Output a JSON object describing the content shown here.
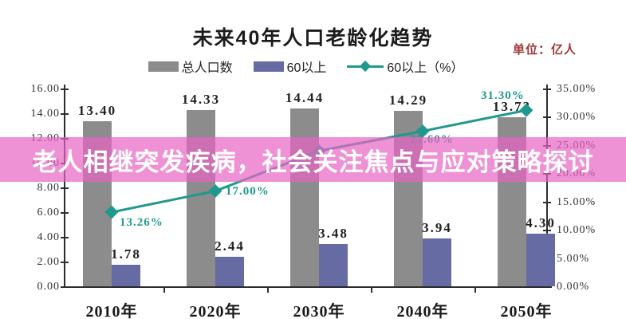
{
  "header": {
    "title": "未来40年人口老龄化趋势",
    "unit_label": "单位：亿人",
    "unit_color": "#a23535"
  },
  "banner": {
    "text": "老人相继突发疾病，社会关注焦点与应对策略探讨",
    "text_color": "#ffffff",
    "background_color": "#e864c3",
    "background_opacity": 0.7
  },
  "chart_data": {
    "type": "bar",
    "subtype": "bar+line combo, dual axis",
    "title": "未来40年人口老龄化趋势",
    "unit": "单位：亿人",
    "grid": false,
    "legend_position": "top",
    "categories": [
      "2010年",
      "2020年",
      "2030年",
      "2040年",
      "2050年"
    ],
    "series": [
      {
        "name": "总人口数",
        "type": "bar",
        "axis": "left",
        "color": "#8c8c8c",
        "values": [
          13.4,
          14.33,
          14.44,
          14.29,
          13.73
        ],
        "value_labels": [
          "13.40",
          "14.33",
          "14.44",
          "14.29",
          "13.73"
        ]
      },
      {
        "name": "60以上",
        "type": "bar",
        "axis": "left",
        "color": "#666ba3",
        "values": [
          1.78,
          2.44,
          3.48,
          3.94,
          4.3
        ],
        "value_labels": [
          "1.78",
          "2.44",
          "3.48",
          "3.94",
          "4.30"
        ]
      },
      {
        "name": "60以上（%）",
        "type": "line",
        "axis": "right",
        "color": "#1f998e",
        "values": [
          13.26,
          17.0,
          24.1,
          27.6,
          31.3
        ],
        "value_labels": [
          "13.26%",
          "17.00%",
          "",
          "27.60%",
          "31.30%"
        ],
        "hidden_label_note": "2030 point label obscured by overlay banner"
      }
    ],
    "left_axis": {
      "min": 0,
      "max": 16,
      "step": 2,
      "tick_labels": [
        "16.00",
        "14.00",
        "12.00",
        "10.00",
        "8.00",
        "6.00",
        "4.00",
        "2.00",
        "0.00"
      ]
    },
    "right_axis": {
      "min": 0,
      "max": 35,
      "step": 5,
      "tick_labels": [
        "35.00%",
        "30.00%",
        "25.00%",
        "20.00%",
        "15.00%",
        "10.00%",
        "5.00%",
        "0.00%"
      ]
    }
  }
}
